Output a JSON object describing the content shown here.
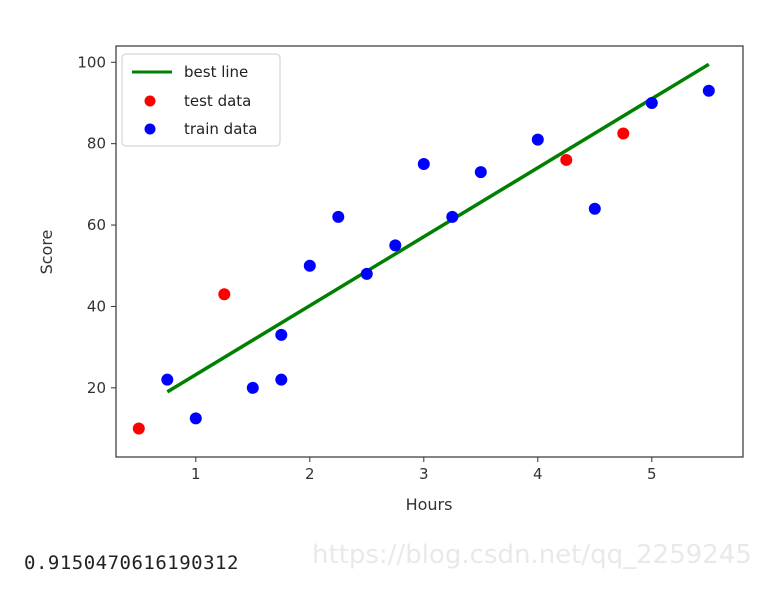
{
  "chart_data": {
    "type": "scatter",
    "xlabel": "Hours",
    "ylabel": "Score",
    "xlim": [
      0.3,
      5.8
    ],
    "ylim": [
      3,
      104
    ],
    "xticks": [
      1,
      2,
      3,
      4,
      5
    ],
    "yticks": [
      20,
      40,
      60,
      80,
      100
    ],
    "grid": false,
    "legend_position": "top-left",
    "legend": [
      "best line",
      "test data",
      "train data"
    ],
    "colors": {
      "best_line": "#008000",
      "test": "#ff0000",
      "train": "#0000ff"
    },
    "best_line": {
      "name": "best line",
      "x": [
        0.75,
        5.5
      ],
      "y": [
        19,
        99.5
      ]
    },
    "test_data": {
      "name": "test data",
      "points": [
        [
          0.5,
          10
        ],
        [
          1.25,
          43
        ],
        [
          4.25,
          76
        ],
        [
          4.75,
          82.5
        ]
      ]
    },
    "train_data": {
      "name": "train data",
      "points": [
        [
          0.75,
          22
        ],
        [
          1.0,
          12.5
        ],
        [
          1.5,
          20
        ],
        [
          1.75,
          22
        ],
        [
          1.75,
          33
        ],
        [
          2.0,
          50
        ],
        [
          2.25,
          62
        ],
        [
          2.5,
          48
        ],
        [
          2.75,
          55
        ],
        [
          3.0,
          75
        ],
        [
          3.25,
          62
        ],
        [
          3.5,
          73
        ],
        [
          4.0,
          81
        ],
        [
          4.5,
          64
        ],
        [
          5.0,
          90
        ],
        [
          5.5,
          93
        ]
      ]
    }
  },
  "output_text": "0.9150470616190312",
  "watermark_text": "https://blog.csdn.net/qq_2259245"
}
